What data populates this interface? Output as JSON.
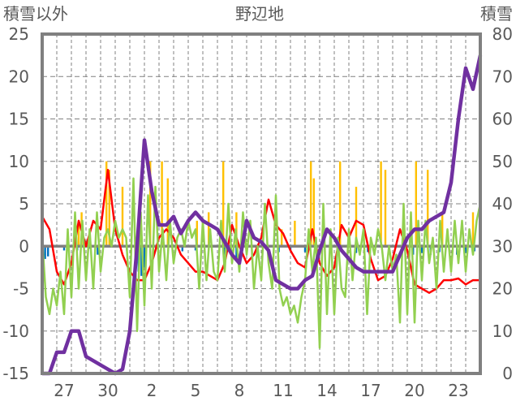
{
  "chart_data": {
    "type": "line",
    "title": "野辺地",
    "ylabel_left": "積雪以外",
    "ylabel_right": "積雪",
    "ylim_left": [
      -15,
      25
    ],
    "ylim_right": [
      0,
      80
    ],
    "yticks_left": [
      "25",
      "20",
      "15",
      "10",
      "5",
      "0",
      "-5",
      "-10",
      "-15"
    ],
    "yticks_right": [
      "80",
      "70",
      "60",
      "50",
      "40",
      "30",
      "20",
      "10",
      "0"
    ],
    "xlim_days": [
      0,
      30
    ],
    "xtick_labels": [
      "27",
      "30",
      "2",
      "5",
      "8",
      "11",
      "14",
      "17",
      "20",
      "23"
    ],
    "xtick_days": [
      1.5,
      4.5,
      7.5,
      10.5,
      13.5,
      16.5,
      19.5,
      22.5,
      25.5,
      28.5
    ],
    "grid": true,
    "colors": {
      "red": "#ff0000",
      "green": "#92d050",
      "purple": "#7030a0",
      "orange": "#ffc000",
      "blue": "#0070c0",
      "axis": "#808080"
    },
    "series": [
      {
        "name": "red",
        "axis": "left",
        "step": 0.5,
        "values": [
          3.5,
          2,
          -3,
          -4.5,
          -2,
          3,
          0,
          3,
          2,
          9,
          2,
          -1,
          -3,
          -4,
          -4,
          -2,
          1,
          2,
          1,
          -1,
          -2,
          -3,
          -3,
          -3.5,
          -4,
          -2,
          2.5,
          0,
          -2,
          -1,
          1,
          5.5,
          2.5,
          1.5,
          -0.5,
          -2,
          -2.5,
          2,
          -2,
          -3.5,
          -2.5,
          2.5,
          1,
          3,
          2.5,
          -1.5,
          -4,
          -3.5,
          -1.5,
          2,
          -0.5,
          -4.5,
          -5,
          -5.5,
          -5,
          -4,
          -4,
          -3.8,
          -4.5,
          -4,
          -4
        ]
      },
      {
        "name": "green",
        "axis": "left",
        "step": 0.25,
        "values": [
          1,
          -6,
          -8,
          -5,
          -7,
          -3,
          -8,
          2,
          -6,
          4,
          -5,
          3,
          -4,
          2,
          -5,
          4,
          -3,
          1,
          2,
          0,
          3,
          1,
          2,
          1,
          -6,
          8,
          -10,
          4,
          -7,
          6,
          -5,
          7,
          -3,
          2,
          -4,
          3,
          -2,
          1,
          2,
          0,
          3,
          1,
          2,
          -5,
          3,
          -4,
          2,
          -3,
          -4,
          3,
          -3,
          5,
          -2,
          2,
          -3,
          4,
          -1,
          3,
          -5,
          0,
          -4,
          5,
          -2,
          -5,
          6,
          -5,
          -7,
          -6,
          -8,
          -7,
          -9,
          -6,
          -4,
          2,
          -3,
          1,
          -12,
          5,
          -8,
          2,
          -8,
          1,
          -5,
          -6,
          2,
          -4,
          1,
          -1,
          2,
          -8,
          1,
          -1,
          2,
          0,
          -4,
          0,
          -3,
          -1,
          -9,
          5,
          -8,
          4,
          -9,
          3,
          -4,
          3,
          -2,
          1,
          -5,
          3,
          -3,
          2,
          -3,
          3,
          -2,
          3,
          -3,
          2,
          -1,
          3,
          5
        ]
      },
      {
        "name": "purple",
        "axis": "right",
        "step": 0.5,
        "values": [
          0,
          0,
          5,
          5,
          10,
          10,
          4,
          3,
          2,
          1,
          0,
          1,
          10,
          30,
          55,
          43,
          35,
          35,
          37,
          33,
          36,
          38,
          36,
          35,
          34,
          31,
          28,
          26,
          36,
          32,
          31,
          29,
          22,
          21,
          20,
          20,
          22,
          23,
          29,
          34,
          32,
          29,
          27,
          25,
          24,
          24,
          24,
          24,
          24,
          28,
          32,
          34,
          34,
          36,
          37,
          38,
          45,
          60,
          72,
          67,
          75
        ]
      }
    ],
    "bars": [
      {
        "name": "orange",
        "axis": "left",
        "points": [
          [
            2.5,
            3
          ],
          [
            2.7,
            4
          ],
          [
            4.4,
            10
          ],
          [
            4.6,
            9
          ],
          [
            5.5,
            7
          ],
          [
            7.4,
            10
          ],
          [
            8.2,
            10
          ],
          [
            8.6,
            8
          ],
          [
            10.6,
            3
          ],
          [
            11.4,
            4
          ],
          [
            12.4,
            10
          ],
          [
            13.3,
            4
          ],
          [
            16.4,
            2
          ],
          [
            17.3,
            3
          ],
          [
            18.4,
            10
          ],
          [
            18.6,
            8
          ],
          [
            19.2,
            2
          ],
          [
            20.4,
            10
          ],
          [
            21.5,
            7
          ],
          [
            23.2,
            10
          ],
          [
            23.5,
            9
          ],
          [
            25.6,
            10
          ],
          [
            26.4,
            9
          ],
          [
            27.4,
            4
          ],
          [
            29.5,
            4
          ]
        ]
      },
      {
        "name": "blue",
        "axis": "left",
        "points": [
          [
            0.2,
            -1.5
          ],
          [
            0.4,
            -1.2
          ],
          [
            1.5,
            -0.5
          ],
          [
            2.4,
            -0.5
          ],
          [
            3.2,
            -0.3
          ],
          [
            3.8,
            -1
          ],
          [
            5.8,
            -0.5
          ],
          [
            6.4,
            -2
          ],
          [
            6.6,
            -3
          ],
          [
            6.8,
            -3.5
          ],
          [
            7.0,
            -2.5
          ],
          [
            9.6,
            -0.6
          ],
          [
            10.5,
            -0.5
          ],
          [
            12.5,
            -1
          ],
          [
            13.3,
            -1.5
          ],
          [
            16.2,
            -0.7
          ],
          [
            17.0,
            -0.5
          ],
          [
            18.0,
            -0.7
          ],
          [
            18.8,
            -0.6
          ],
          [
            19.8,
            -0.5
          ],
          [
            21.5,
            -0.8
          ],
          [
            22.3,
            -0.7
          ],
          [
            25.4,
            -1
          ],
          [
            26.0,
            -0.8
          ],
          [
            26.6,
            -1
          ],
          [
            27.2,
            -0.7
          ],
          [
            28.4,
            -1
          ],
          [
            29.0,
            -0.8
          ],
          [
            29.6,
            -0.6
          ]
        ]
      }
    ]
  }
}
